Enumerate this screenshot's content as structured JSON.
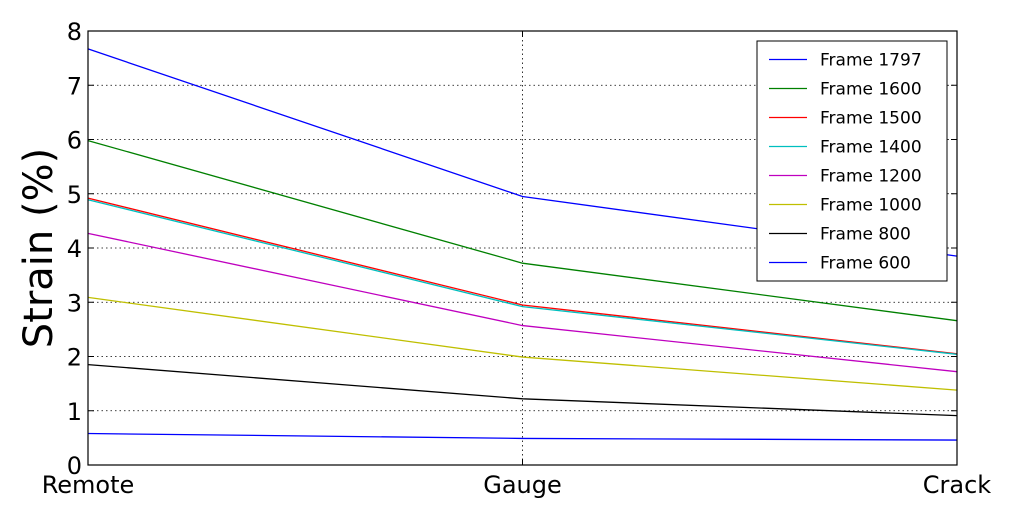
{
  "chart_data": {
    "type": "line",
    "title": "",
    "xlabel": "",
    "ylabel": "Strain (%)",
    "categories": [
      "Remote",
      "Gauge",
      "Crack"
    ],
    "ylim": [
      0,
      8
    ],
    "yticks": [
      0,
      1,
      2,
      3,
      4,
      5,
      6,
      7,
      8
    ],
    "grid": true,
    "legend_position": "top-right",
    "series": [
      {
        "name": "Frame 1797",
        "color": "#0000ff",
        "values": [
          7.67,
          4.95,
          3.85
        ]
      },
      {
        "name": "Frame 1600",
        "color": "#008000",
        "values": [
          5.98,
          3.72,
          2.66
        ]
      },
      {
        "name": "Frame 1500",
        "color": "#ff0000",
        "values": [
          4.92,
          2.95,
          2.05
        ]
      },
      {
        "name": "Frame 1400",
        "color": "#00bfbf",
        "values": [
          4.89,
          2.92,
          2.04
        ]
      },
      {
        "name": "Frame 1200",
        "color": "#bf00bf",
        "values": [
          4.27,
          2.57,
          1.72
        ]
      },
      {
        "name": "Frame 1000",
        "color": "#bfbf00",
        "values": [
          3.09,
          1.99,
          1.38
        ]
      },
      {
        "name": "Frame 800",
        "color": "#000000",
        "values": [
          1.85,
          1.22,
          0.91
        ]
      },
      {
        "name": "Frame 600",
        "color": "#0000ff",
        "values": [
          0.58,
          0.49,
          0.46
        ]
      }
    ]
  }
}
